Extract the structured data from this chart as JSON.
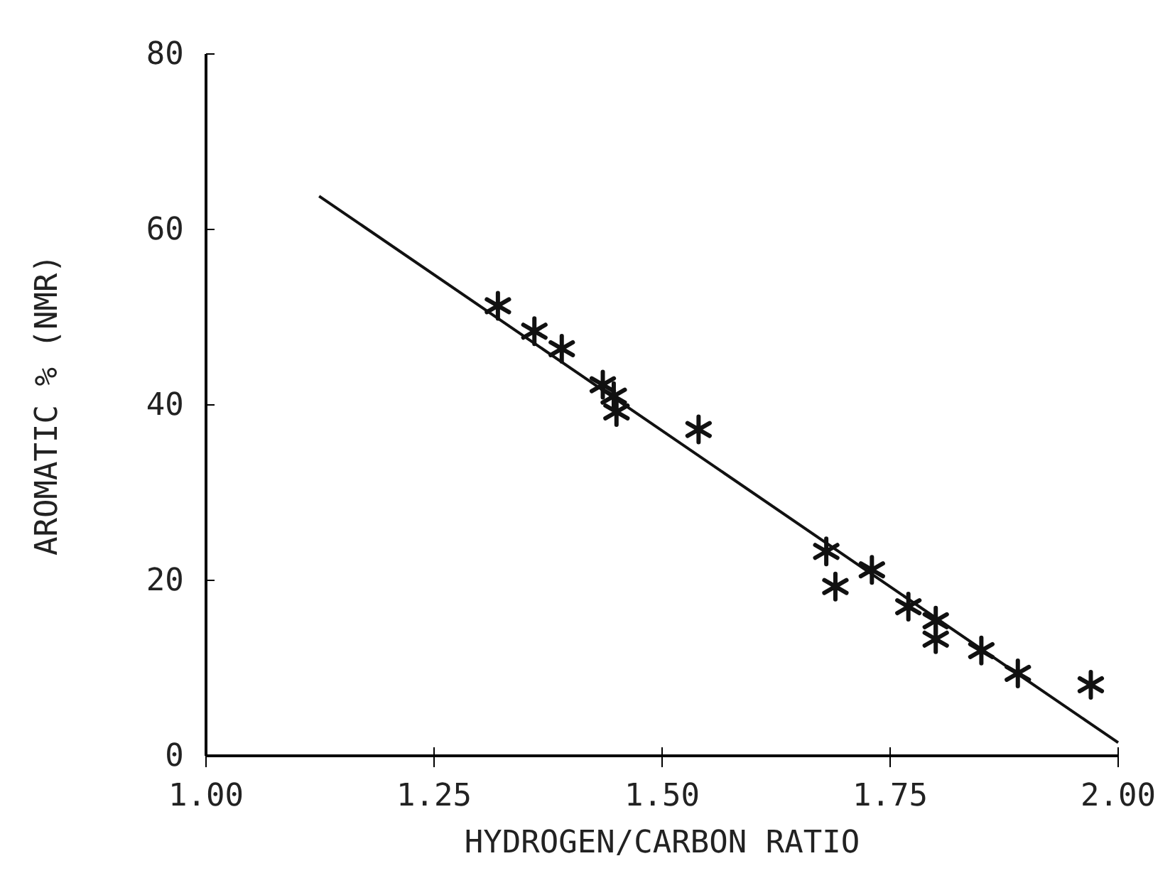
{
  "chart_data": {
    "type": "scatter",
    "xlabel": "HYDROGEN/CARBON RATIO",
    "ylabel": "AROMATIC % (NMR)",
    "xlim": [
      1.0,
      2.0
    ],
    "xticks": [
      {
        "value": 1.0,
        "label": "1.00"
      },
      1.25,
      {
        "value": 1.5,
        "label": "1.50"
      },
      1.75,
      {
        "value": 2.0,
        "label": "2.00"
      }
    ],
    "ylim": [
      0,
      80
    ],
    "yticks": [
      0,
      20,
      40,
      60,
      80
    ],
    "grid": false,
    "series": [
      {
        "color": "#111111",
        "marker": "cross",
        "x": [
          1.32,
          1.36,
          1.39,
          1.435,
          1.447,
          1.45,
          1.54,
          1.68,
          1.69,
          1.73,
          1.77,
          1.8,
          1.8,
          1.85,
          1.89,
          1.97
        ],
        "values": [
          51.3,
          48.4,
          46.4,
          42.3,
          41.0,
          39.2,
          37.2,
          23.3,
          19.3,
          21.2,
          17.0,
          15.4,
          13.3,
          12.0,
          9.4,
          8.1
        ]
      },
      {
        "type": "line",
        "color": "#111111",
        "line_style": "solid",
        "x": [
          1.124,
          2.0
        ],
        "values": [
          63.8,
          1.5
        ]
      }
    ]
  }
}
